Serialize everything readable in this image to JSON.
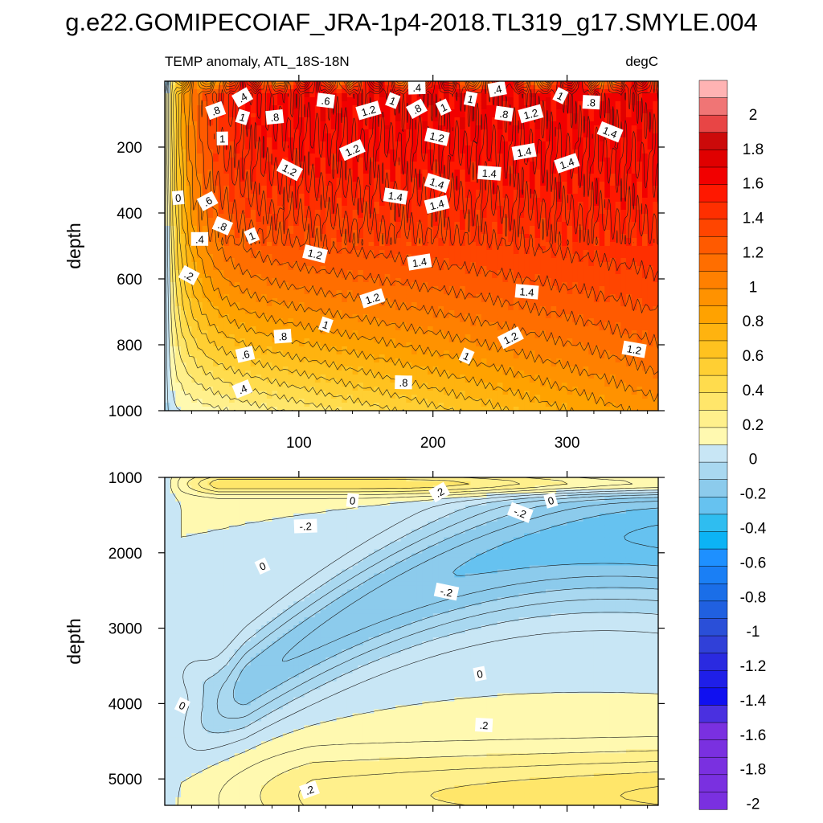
{
  "chart_data": {
    "type": "heatmap",
    "title": "g.e22.GOMIPECOIAF_JRA-1p4-2018.TL319_g17.SMYLE.004",
    "subtitle_left": "TEMP anomaly, ATL_18S-18N",
    "subtitle_right": "degC",
    "xlim": [
      0,
      368
    ],
    "xticks": [
      "100",
      "200",
      "300"
    ],
    "colorbar_labels": [
      "2",
      "1.8",
      "1.6",
      "1.4",
      "1.2",
      "1",
      "0.8",
      "0.6",
      "0.4",
      "0.2",
      "0",
      "-0.2",
      "-0.4",
      "-0.6",
      "-0.8",
      "-1",
      "-1.2",
      "-1.4",
      "-1.6",
      "-1.8",
      "-2"
    ],
    "colormap": {
      "positive": [
        "#fff9b0",
        "#fff08c",
        "#ffe66a",
        "#ffdc4d",
        "#ffcf33",
        "#ffc21f",
        "#ffb30f",
        "#ffa200",
        "#ff9200",
        "#ff8000",
        "#ff6e00",
        "#ff5a00",
        "#ff4500",
        "#ff2f00",
        "#ff1800",
        "#f20000",
        "#e00000",
        "#cc0a0a",
        "#e84545",
        "#f07575",
        "#ffb3b3"
      ],
      "negative": [
        "#c8e6f5",
        "#a9d8f0",
        "#8ccbec",
        "#66c2f0",
        "#2fbdf0",
        "#0cb3f5",
        "#1e90ff",
        "#1a7ff5",
        "#1a6ee8",
        "#2060e0",
        "#2a4fd8",
        "#3040d8",
        "#2a2ae0",
        "#1f1fe8",
        "#1010f0",
        "#4a30e0",
        "#7a30e0"
      ]
    },
    "panels": [
      {
        "name": "upper-ocean",
        "ylabel": "depth",
        "ylim": [
          0,
          1000
        ],
        "yticks": [
          "200",
          "400",
          "600",
          "800",
          "1000"
        ],
        "contour_labels": [
          {
            "text": ".4",
            "x": 58,
            "y": 50
          },
          {
            "text": ".6",
            "x": 120,
            "y": 60
          },
          {
            "text": "1.2",
            "x": 152,
            "y": 90
          },
          {
            "text": "1",
            "x": 170,
            "y": 60
          },
          {
            "text": ".4",
            "x": 188,
            "y": 20
          },
          {
            "text": "1",
            "x": 208,
            "y": 80
          },
          {
            "text": "1",
            "x": 228,
            "y": 55
          },
          {
            "text": ".4",
            "x": 248,
            "y": 25
          },
          {
            "text": "1",
            "x": 295,
            "y": 45
          },
          {
            "text": ".8",
            "x": 318,
            "y": 65
          },
          {
            "text": ".8",
            "x": 38,
            "y": 90
          },
          {
            "text": "1",
            "x": 58,
            "y": 110
          },
          {
            "text": ".8",
            "x": 82,
            "y": 110
          },
          {
            "text": ".8",
            "x": 188,
            "y": 85
          },
          {
            "text": ".8",
            "x": 253,
            "y": 100
          },
          {
            "text": "1.2",
            "x": 273,
            "y": 100
          },
          {
            "text": "1.4",
            "x": 332,
            "y": 155
          },
          {
            "text": "1",
            "x": 43,
            "y": 175
          },
          {
            "text": "1.2",
            "x": 140,
            "y": 210
          },
          {
            "text": "1.2",
            "x": 203,
            "y": 170
          },
          {
            "text": "1.4",
            "x": 268,
            "y": 215
          },
          {
            "text": "1.2",
            "x": 93,
            "y": 270
          },
          {
            "text": "1.4",
            "x": 242,
            "y": 280
          },
          {
            "text": "1.4",
            "x": 300,
            "y": 250
          },
          {
            "text": "1.4",
            "x": 203,
            "y": 310
          },
          {
            "text": "0",
            "x": 10,
            "y": 355
          },
          {
            "text": ".6",
            "x": 32,
            "y": 365
          },
          {
            "text": "1.4",
            "x": 172,
            "y": 350
          },
          {
            "text": "1.4",
            "x": 203,
            "y": 375
          },
          {
            "text": ".8",
            "x": 43,
            "y": 440
          },
          {
            "text": ".4",
            "x": 26,
            "y": 480
          },
          {
            "text": "1",
            "x": 65,
            "y": 470
          },
          {
            "text": "1.2",
            "x": 112,
            "y": 525
          },
          {
            "text": "1.4",
            "x": 190,
            "y": 550
          },
          {
            "text": ".2",
            "x": 18,
            "y": 590
          },
          {
            "text": "1.4",
            "x": 270,
            "y": 640
          },
          {
            "text": "1.2",
            "x": 155,
            "y": 660
          },
          {
            "text": "1",
            "x": 120,
            "y": 740
          },
          {
            "text": ".8",
            "x": 88,
            "y": 775
          },
          {
            "text": "1.2",
            "x": 258,
            "y": 780
          },
          {
            "text": "1.2",
            "x": 350,
            "y": 815
          },
          {
            "text": ".6",
            "x": 60,
            "y": 830
          },
          {
            "text": "1",
            "x": 225,
            "y": 835
          },
          {
            "text": ".8",
            "x": 178,
            "y": 915
          },
          {
            "text": ".4",
            "x": 58,
            "y": 935
          }
        ]
      },
      {
        "name": "deep-ocean",
        "ylabel": "depth",
        "ylim": [
          1000,
          5350
        ],
        "yticks": [
          "1000",
          "2000",
          "3000",
          "4000",
          "5000"
        ],
        "contour_labels": [
          {
            "text": ".2",
            "x": 205,
            "y": 1200
          },
          {
            "text": "0",
            "x": 140,
            "y": 1310
          },
          {
            "text": "0",
            "x": 288,
            "y": 1310
          },
          {
            "text": "-.2",
            "x": 265,
            "y": 1470
          },
          {
            "text": "-.2",
            "x": 105,
            "y": 1650
          },
          {
            "text": "0",
            "x": 73,
            "y": 2180
          },
          {
            "text": "-.2",
            "x": 210,
            "y": 2520
          },
          {
            "text": "0",
            "x": 235,
            "y": 3610
          },
          {
            "text": "0",
            "x": 13,
            "y": 4030
          },
          {
            "text": ".2",
            "x": 238,
            "y": 4290
          },
          {
            "text": ".2",
            "x": 108,
            "y": 5150
          }
        ]
      }
    ]
  }
}
